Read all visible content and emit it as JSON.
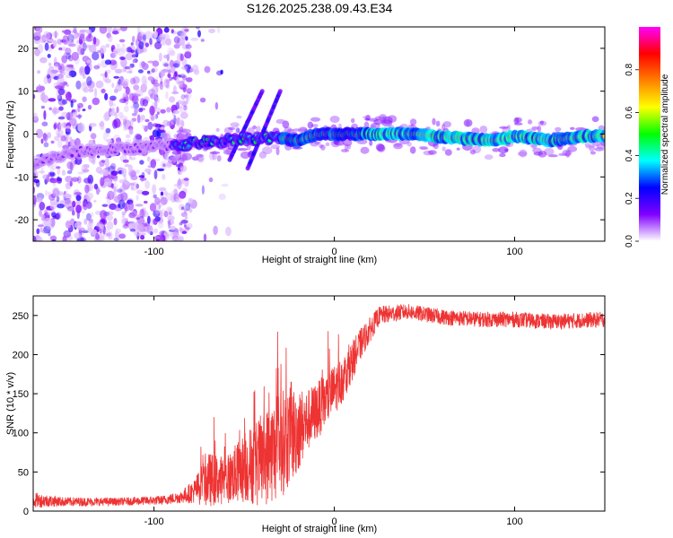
{
  "figure": {
    "title": "S126.2025.238.09.43.E34"
  },
  "chart_data": [
    {
      "type": "heatmap",
      "name": "spectrogram",
      "xlabel": "Height of straight line (km)",
      "ylabel": "Frequency (Hz)",
      "xlim": [
        -167,
        150
      ],
      "ylim": [
        -25,
        25
      ],
      "xticks": [
        -100,
        0,
        100
      ],
      "xtick_labels": [
        "-100",
        "0",
        "100"
      ],
      "yticks": [
        -20,
        -10,
        0,
        10,
        20
      ],
      "ytick_labels": [
        "-20",
        "-10",
        "0",
        "10",
        "20"
      ],
      "ridge": [
        {
          "x": -167,
          "y": -8
        },
        {
          "x": -160,
          "y": -6
        },
        {
          "x": -140,
          "y": -4
        },
        {
          "x": -120,
          "y": -3.5
        },
        {
          "x": -100,
          "y": -3
        },
        {
          "x": -85,
          "y": -2.5
        },
        {
          "x": -75,
          "y": -2
        },
        {
          "x": -65,
          "y": -2
        },
        {
          "x": -55,
          "y": -1
        },
        {
          "x": -45,
          "y": -1
        },
        {
          "x": -38,
          "y": -1
        },
        {
          "x": -30,
          "y": -1
        },
        {
          "x": -20,
          "y": -1.5
        },
        {
          "x": -10,
          "y": 0
        },
        {
          "x": 0,
          "y": 0
        },
        {
          "x": 20,
          "y": 0
        },
        {
          "x": 40,
          "y": 0
        },
        {
          "x": 55,
          "y": -0.5
        },
        {
          "x": 70,
          "y": -1
        },
        {
          "x": 90,
          "y": -1.5
        },
        {
          "x": 100,
          "y": -0.5
        },
        {
          "x": 120,
          "y": -1.5
        },
        {
          "x": 140,
          "y": -0.5
        },
        {
          "x": 150,
          "y": -0.5
        }
      ],
      "colorbar": {
        "label": "Normalized spectral amplitude",
        "range": [
          0,
          1
        ],
        "ticks": [
          0,
          0.2,
          0.4,
          0.6,
          0.8
        ],
        "tick_labels": [
          "0.0",
          "0.2",
          "0.4",
          "0.6",
          "0.8"
        ],
        "colormap": [
          "#ffffff",
          "#8000ff",
          "#0000ff",
          "#00ffff",
          "#00ff00",
          "#ffff00",
          "#ff8000",
          "#ff0000",
          "#ff00ff"
        ]
      }
    },
    {
      "type": "line",
      "name": "snr",
      "xlabel": "Height of straight line (km)",
      "ylabel": "SNR (10 * v/v)",
      "xlim": [
        -167,
        150
      ],
      "ylim": [
        0,
        275
      ],
      "xticks": [
        -100,
        0,
        100
      ],
      "xtick_labels": [
        "-100",
        "0",
        "100"
      ],
      "yticks": [
        0,
        50,
        100,
        150,
        200,
        250
      ],
      "ytick_labels": [
        "0",
        "50",
        "100",
        "150",
        "200",
        "250"
      ],
      "series": [
        {
          "name": "SNR",
          "color": "#ee3333",
          "envelope": [
            {
              "x": -167,
              "mean": 14,
              "amp": 10
            },
            {
              "x": -150,
              "mean": 12,
              "amp": 6
            },
            {
              "x": -120,
              "mean": 12,
              "amp": 5
            },
            {
              "x": -95,
              "mean": 14,
              "amp": 6
            },
            {
              "x": -85,
              "mean": 18,
              "amp": 8
            },
            {
              "x": -78,
              "mean": 25,
              "amp": 15
            },
            {
              "x": -70,
              "mean": 40,
              "amp": 35
            },
            {
              "x": -60,
              "mean": 40,
              "amp": 30
            },
            {
              "x": -50,
              "mean": 55,
              "amp": 45
            },
            {
              "x": -40,
              "mean": 65,
              "amp": 60
            },
            {
              "x": -30,
              "mean": 85,
              "amp": 70
            },
            {
              "x": -22,
              "mean": 100,
              "amp": 60
            },
            {
              "x": -15,
              "mean": 115,
              "amp": 40
            },
            {
              "x": -5,
              "mean": 140,
              "amp": 35
            },
            {
              "x": 5,
              "mean": 170,
              "amp": 30
            },
            {
              "x": 15,
              "mean": 215,
              "amp": 20
            },
            {
              "x": 25,
              "mean": 250,
              "amp": 12
            },
            {
              "x": 40,
              "mean": 255,
              "amp": 10
            },
            {
              "x": 60,
              "mean": 248,
              "amp": 10
            },
            {
              "x": 80,
              "mean": 245,
              "amp": 10
            },
            {
              "x": 100,
              "mean": 245,
              "amp": 10
            },
            {
              "x": 120,
              "mean": 242,
              "amp": 10
            },
            {
              "x": 150,
              "mean": 245,
              "amp": 10
            }
          ]
        }
      ]
    }
  ]
}
